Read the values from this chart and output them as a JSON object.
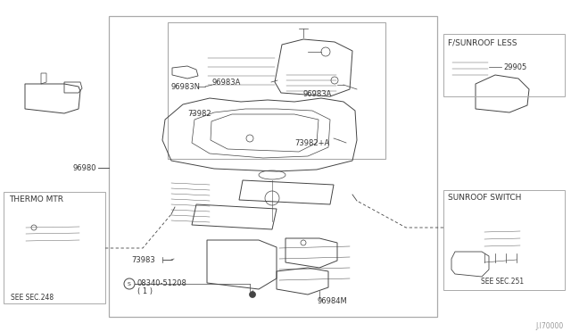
{
  "bg_color": "#ffffff",
  "border_color": "#aaaaaa",
  "line_color": "#444444",
  "text_color": "#333333",
  "fig_width": 6.4,
  "fig_height": 3.72,
  "part_96980": "96980",
  "part_96983N": "96983N",
  "part_96983A": "96983A",
  "part_73982": "73982",
  "part_73982A": "73982+A",
  "part_73983": "73983",
  "part_screw": "08340-51208",
  "part_screw_note": "( 1 )",
  "part_96984M": "96984M",
  "thermo_title": "THERMO MTR",
  "thermo_sec": "SEE SEC.248",
  "sunroof_title": "SUNROOF SWITCH",
  "sunroof_sec": "SEE SEC.251",
  "fsunroof_title": "F/SUNROOF LESS",
  "part_29905": "29905",
  "watermark": "J.I70000",
  "fs": 6.0
}
